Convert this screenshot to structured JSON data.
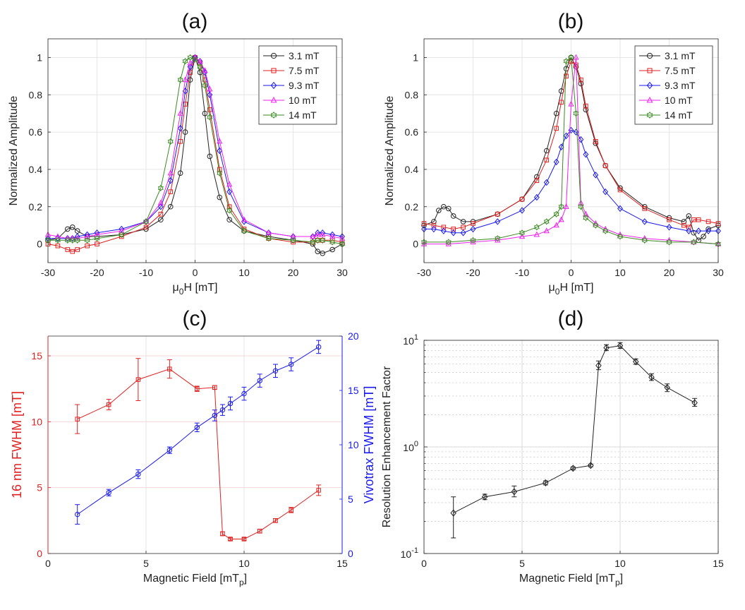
{
  "colors": {
    "black": "#222222",
    "red": "#e02020",
    "blue": "#1a1aee",
    "magenta": "#ee22ee",
    "green": "#3a8a20",
    "grid": "#e6e6e6"
  },
  "chart_data": [
    {
      "id": "a",
      "type": "line",
      "title": "(a)",
      "xlabel": {
        "main": "μ",
        "sub": "0",
        "rest": "H [mT]"
      },
      "ylabel": "Normalized Amplitude",
      "xlim": [
        -30,
        30
      ],
      "ylim": [
        -0.1,
        1.1
      ],
      "xticks": [
        -30,
        -20,
        -10,
        0,
        10,
        20,
        30
      ],
      "xtick_labels": [
        "-30",
        "-20",
        "-10",
        "0",
        "10",
        "20",
        "30"
      ],
      "yticks": [
        0,
        0.2,
        0.4,
        0.6,
        0.8,
        1
      ],
      "ytick_labels": [
        "0",
        "0.2",
        "0.4",
        "0.6",
        "0.8",
        "1"
      ],
      "grid": true,
      "legend_position": "top-right",
      "series": [
        {
          "name": "3.1 mT",
          "color": "black",
          "marker": "circle",
          "x": [
            -30,
            -28,
            -26,
            -25,
            -24,
            -22,
            -20,
            -15,
            -10,
            -7,
            -5,
            -3,
            -2,
            -1,
            0,
            1,
            2,
            3,
            5,
            7,
            10,
            15,
            20,
            24,
            25,
            26,
            28,
            30
          ],
          "y": [
            0.02,
            0.03,
            0.08,
            0.09,
            0.07,
            0.04,
            0.04,
            0.05,
            0.08,
            0.13,
            0.2,
            0.38,
            0.6,
            0.88,
            1.0,
            0.92,
            0.7,
            0.47,
            0.25,
            0.13,
            0.07,
            0.04,
            0.02,
            0.0,
            -0.04,
            -0.05,
            -0.03,
            0.0
          ]
        },
        {
          "name": "7.5 mT",
          "color": "red",
          "marker": "square",
          "x": [
            -30,
            -28,
            -26,
            -25,
            -24,
            -22,
            -20,
            -15,
            -10,
            -7,
            -5,
            -3,
            -2,
            -1,
            0,
            1,
            2,
            3,
            5,
            7,
            10,
            15,
            20,
            24,
            25,
            26,
            28,
            30
          ],
          "y": [
            0.0,
            -0.01,
            -0.03,
            -0.04,
            -0.03,
            -0.01,
            0.0,
            0.04,
            0.09,
            0.16,
            0.28,
            0.55,
            0.75,
            0.92,
            1.0,
            0.97,
            0.88,
            0.72,
            0.4,
            0.2,
            0.08,
            0.03,
            0.01,
            0.01,
            0.02,
            0.02,
            0.02,
            0.01
          ]
        },
        {
          "name": "9.3 mT",
          "color": "blue",
          "marker": "diamond",
          "x": [
            -30,
            -28,
            -26,
            -25,
            -24,
            -22,
            -20,
            -15,
            -10,
            -7,
            -5,
            -3,
            -2,
            -1,
            0,
            1,
            2,
            3,
            5,
            7,
            10,
            15,
            20,
            24,
            25,
            26,
            28,
            30
          ],
          "y": [
            0.03,
            0.03,
            0.03,
            0.03,
            0.04,
            0.05,
            0.06,
            0.08,
            0.12,
            0.2,
            0.34,
            0.62,
            0.82,
            0.95,
            1.0,
            0.98,
            0.92,
            0.8,
            0.5,
            0.28,
            0.12,
            0.06,
            0.04,
            0.04,
            0.06,
            0.06,
            0.05,
            0.04
          ]
        },
        {
          "name": "10 mT",
          "color": "magenta",
          "marker": "triangle",
          "x": [
            -30,
            -28,
            -26,
            -25,
            -24,
            -22,
            -20,
            -15,
            -10,
            -7,
            -5,
            -3,
            -2,
            -1,
            0,
            1,
            2,
            3,
            5,
            7,
            10,
            15,
            20,
            24,
            25,
            26,
            28,
            30
          ],
          "y": [
            0.05,
            0.04,
            0.03,
            0.03,
            0.03,
            0.04,
            0.05,
            0.07,
            0.12,
            0.22,
            0.38,
            0.7,
            0.88,
            0.97,
            1.0,
            0.98,
            0.93,
            0.83,
            0.55,
            0.32,
            0.13,
            0.06,
            0.04,
            0.04,
            0.05,
            0.05,
            0.04,
            0.03
          ]
        },
        {
          "name": "14 mT",
          "color": "green",
          "marker": "hexagram",
          "x": [
            -30,
            -28,
            -26,
            -25,
            -24,
            -22,
            -20,
            -15,
            -10,
            -7,
            -5,
            -3,
            -2,
            -1,
            0,
            1,
            2,
            3,
            5,
            7,
            10,
            15,
            20,
            24,
            25,
            26,
            28,
            30
          ],
          "y": [
            0.02,
            0.02,
            0.02,
            0.02,
            0.02,
            0.02,
            0.03,
            0.05,
            0.12,
            0.3,
            0.55,
            0.88,
            0.98,
            1.0,
            0.99,
            0.95,
            0.85,
            0.68,
            0.38,
            0.18,
            0.07,
            0.03,
            0.02,
            0.01,
            0.02,
            0.02,
            0.01,
            0.0
          ]
        }
      ]
    },
    {
      "id": "b",
      "type": "line",
      "title": "(b)",
      "xlabel": {
        "main": "μ",
        "sub": "0",
        "rest": "H [mT]"
      },
      "ylabel": "Normalized Amplitude",
      "xlim": [
        -30,
        30
      ],
      "ylim": [
        -0.1,
        1.1
      ],
      "xticks": [
        -30,
        -20,
        -10,
        0,
        10,
        20,
        30
      ],
      "xtick_labels": [
        "-30",
        "-20",
        "-10",
        "0",
        "10",
        "20",
        "30"
      ],
      "yticks": [
        0,
        0.2,
        0.4,
        0.6,
        0.8,
        1
      ],
      "ytick_labels": [
        "0",
        "0.2",
        "0.4",
        "0.6",
        "0.8",
        "1"
      ],
      "grid": true,
      "legend_position": "top-right",
      "series": [
        {
          "name": "3.1 mT",
          "color": "black",
          "marker": "circle",
          "x": [
            -30,
            -28,
            -27,
            -26,
            -25,
            -24,
            -22,
            -20,
            -15,
            -10,
            -7,
            -5,
            -3,
            -2,
            -1,
            0,
            1,
            2,
            3,
            5,
            7,
            10,
            15,
            20,
            23,
            24,
            25,
            26,
            27,
            28,
            30
          ],
          "y": [
            0.1,
            0.12,
            0.18,
            0.2,
            0.19,
            0.15,
            0.12,
            0.12,
            0.16,
            0.24,
            0.36,
            0.5,
            0.7,
            0.82,
            0.94,
            1.0,
            0.95,
            0.86,
            0.72,
            0.54,
            0.42,
            0.3,
            0.2,
            0.14,
            0.12,
            0.15,
            0.06,
            0.02,
            0.04,
            0.08,
            0.1
          ]
        },
        {
          "name": "7.5 mT",
          "color": "red",
          "marker": "square",
          "x": [
            -30,
            -28,
            -26,
            -24,
            -22,
            -20,
            -15,
            -10,
            -7,
            -5,
            -3,
            -2,
            -1,
            0,
            1,
            2,
            3,
            5,
            7,
            10,
            15,
            20,
            23,
            24,
            25,
            26,
            28,
            30
          ],
          "y": [
            0.11,
            0.1,
            0.09,
            0.08,
            0.09,
            0.11,
            0.16,
            0.24,
            0.34,
            0.45,
            0.62,
            0.76,
            0.9,
            0.98,
            0.96,
            0.88,
            0.74,
            0.55,
            0.42,
            0.29,
            0.19,
            0.13,
            0.1,
            0.09,
            0.13,
            0.13,
            0.12,
            0.11
          ]
        },
        {
          "name": "9.3 mT",
          "color": "blue",
          "marker": "diamond",
          "x": [
            -30,
            -28,
            -26,
            -24,
            -22,
            -20,
            -15,
            -10,
            -7,
            -5,
            -3,
            -2,
            -1,
            0,
            1,
            2,
            3,
            5,
            7,
            10,
            15,
            20,
            24,
            26,
            28,
            30
          ],
          "y": [
            0.08,
            0.08,
            0.07,
            0.06,
            0.06,
            0.08,
            0.12,
            0.18,
            0.25,
            0.33,
            0.44,
            0.52,
            0.58,
            0.61,
            0.6,
            0.56,
            0.48,
            0.37,
            0.28,
            0.19,
            0.12,
            0.09,
            0.07,
            0.07,
            0.07,
            0.07
          ]
        },
        {
          "name": "10 mT",
          "color": "magenta",
          "marker": "triangle",
          "x": [
            -30,
            -25,
            -20,
            -15,
            -10,
            -7,
            -5,
            -3,
            -2,
            -1,
            0,
            1,
            2,
            3,
            5,
            7,
            10,
            15,
            20,
            25,
            30
          ],
          "y": [
            0.0,
            0.0,
            0.01,
            0.02,
            0.04,
            0.05,
            0.07,
            0.1,
            0.13,
            0.2,
            0.75,
            1.0,
            0.22,
            0.16,
            0.11,
            0.08,
            0.05,
            0.03,
            0.02,
            0.01,
            0.0
          ]
        },
        {
          "name": "14 mT",
          "color": "green",
          "marker": "hexagram",
          "x": [
            -30,
            -25,
            -20,
            -15,
            -10,
            -7,
            -5,
            -3,
            -2,
            -1,
            0,
            1,
            2,
            3,
            5,
            7,
            10,
            15,
            20,
            25,
            30
          ],
          "y": [
            0.01,
            0.01,
            0.02,
            0.03,
            0.06,
            0.09,
            0.12,
            0.16,
            0.2,
            0.98,
            1.0,
            0.7,
            0.2,
            0.14,
            0.1,
            0.07,
            0.04,
            0.02,
            0.01,
            0.01,
            0.0
          ]
        }
      ]
    },
    {
      "id": "c",
      "type": "line",
      "title": "(c)",
      "xlabel": {
        "main": "Magnetic Field [mT",
        "sub": "p",
        "rest": "]"
      },
      "ylabel_left": "16 nm FWHM [mT]",
      "ylabel_right": "Vivotrax FWHM [mT]",
      "xlim": [
        0,
        15
      ],
      "ylim_left": [
        0,
        16.5
      ],
      "ylim_right": [
        0,
        20
      ],
      "xticks": [
        0,
        5,
        10,
        15
      ],
      "xtick_labels": [
        "0",
        "5",
        "10",
        "15"
      ],
      "yticks_left": [
        0,
        5,
        10,
        15
      ],
      "ytick_labels_left": [
        "0",
        "5",
        "10",
        "15"
      ],
      "yticks_right": [
        0,
        5,
        10,
        15,
        20
      ],
      "ytick_labels_right": [
        "0",
        "5",
        "10",
        "15",
        "20"
      ],
      "grid": true,
      "series": [
        {
          "name": "16 nm",
          "color": "red",
          "marker": "square",
          "axis": "left",
          "x": [
            1.5,
            3.1,
            4.6,
            6.2,
            7.6,
            8.5,
            8.9,
            9.3,
            10.0,
            10.8,
            11.6,
            12.4,
            13.8
          ],
          "y": [
            10.2,
            11.3,
            13.2,
            14.0,
            12.5,
            12.6,
            1.5,
            1.1,
            1.1,
            1.7,
            2.5,
            3.3,
            4.8
          ],
          "err": [
            1.1,
            0.4,
            1.6,
            0.7,
            0.2,
            0.15,
            0.15,
            0.1,
            0.1,
            0.15,
            0.15,
            0.2,
            0.4
          ]
        },
        {
          "name": "Vivotrax",
          "color": "blue",
          "marker": "circle",
          "axis": "right",
          "x": [
            1.5,
            3.1,
            4.6,
            6.2,
            7.6,
            8.5,
            8.9,
            9.3,
            10.0,
            10.8,
            11.6,
            12.4,
            13.8
          ],
          "y": [
            3.6,
            5.6,
            7.3,
            9.5,
            11.6,
            12.7,
            13.2,
            13.8,
            14.7,
            15.9,
            16.8,
            17.4,
            19.0
          ],
          "err": [
            0.9,
            0.3,
            0.4,
            0.3,
            0.4,
            0.5,
            0.5,
            0.6,
            0.6,
            0.6,
            0.6,
            0.6,
            0.6
          ]
        }
      ]
    },
    {
      "id": "d",
      "type": "line",
      "title": "(d)",
      "xlabel": {
        "main": "Magnetic Field [mT",
        "sub": "p",
        "rest": "]"
      },
      "ylabel": "Resolution Enhancement Factor",
      "xlim": [
        0,
        15
      ],
      "ylim": [
        0.1,
        10
      ],
      "yscale": "log",
      "xticks": [
        0,
        5,
        10,
        15
      ],
      "xtick_labels": [
        "0",
        "5",
        "10",
        "15"
      ],
      "yticks": [
        0.1,
        1,
        10
      ],
      "ytick_labels": [
        {
          "base": "10",
          "exp": "-1"
        },
        {
          "base": "10",
          "exp": "0"
        },
        {
          "base": "10",
          "exp": "1"
        }
      ],
      "grid": true,
      "series": [
        {
          "name": "Enhancement",
          "color": "black",
          "marker": "diamond",
          "x": [
            1.5,
            3.1,
            4.6,
            6.2,
            7.6,
            8.5,
            8.9,
            9.3,
            10.0,
            10.8,
            11.6,
            12.4,
            13.8
          ],
          "y": [
            0.24,
            0.34,
            0.38,
            0.46,
            0.63,
            0.67,
            5.8,
            8.5,
            8.9,
            6.3,
            4.5,
            3.6,
            2.6
          ],
          "err_low": [
            0.1,
            0.02,
            0.04,
            0.02,
            0.02,
            0.02,
            0.5,
            0.5,
            0.5,
            0.35,
            0.3,
            0.3,
            0.2
          ],
          "err_high": [
            0.1,
            0.02,
            0.05,
            0.02,
            0.02,
            0.02,
            0.6,
            0.6,
            0.6,
            0.4,
            0.35,
            0.3,
            0.25
          ]
        }
      ]
    }
  ]
}
